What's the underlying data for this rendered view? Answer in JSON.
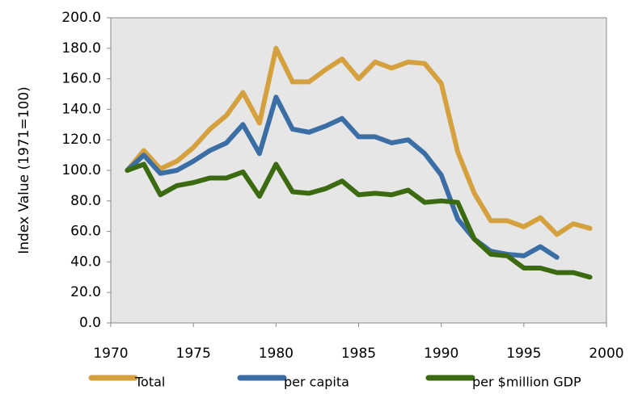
{
  "chart_data": {
    "type": "line",
    "y_label": "Index Value (1971=100)",
    "x": [
      1971,
      1972,
      1973,
      1974,
      1975,
      1976,
      1977,
      1978,
      1979,
      1980,
      1981,
      1982,
      1983,
      1984,
      1985,
      1986,
      1987,
      1988,
      1989,
      1990,
      1991,
      1992,
      1993,
      1994,
      1995,
      1996,
      1997,
      1998,
      1999
    ],
    "series": [
      {
        "name": "Total",
        "color": "#d4a13e",
        "values": [
          100,
          113,
          101,
          106,
          115,
          127,
          136,
          151,
          131,
          180,
          158,
          158,
          166,
          173,
          160,
          171,
          167,
          171,
          170,
          157,
          112,
          85,
          67,
          67,
          63,
          69,
          58,
          65,
          62
        ]
      },
      {
        "name": "per capita",
        "color": "#3a6ea5",
        "values": [
          100,
          110,
          98,
          100,
          106,
          113,
          118,
          130,
          111,
          148,
          127,
          125,
          129,
          134,
          122,
          122,
          118,
          120,
          111,
          97,
          68,
          55,
          47,
          45,
          44,
          50,
          43,
          null,
          null
        ]
      },
      {
        "name": "per $million GDP",
        "color": "#3b6a10",
        "values": [
          100,
          104,
          84,
          90,
          92,
          95,
          95,
          99,
          83,
          104,
          86,
          85,
          88,
          93,
          84,
          85,
          84,
          87,
          79,
          80,
          79,
          55,
          45,
          44,
          36,
          36,
          33,
          33,
          30
        ]
      }
    ],
    "xlim": [
      1970,
      2000
    ],
    "xticks": [
      1970,
      1975,
      1980,
      1985,
      1990,
      1995,
      2000
    ],
    "ylim": [
      0,
      200
    ],
    "yticks": [
      {
        "value": 0,
        "label": "0.0"
      },
      {
        "value": 20,
        "label": "20.0"
      },
      {
        "value": 40,
        "label": "40.0"
      },
      {
        "value": 60,
        "label": "60.0"
      },
      {
        "value": 80,
        "label": "80.0"
      },
      {
        "value": 100,
        "label": "100.0"
      },
      {
        "value": 120,
        "label": "120.0"
      },
      {
        "value": 140,
        "label": "140.0"
      },
      {
        "value": 160,
        "label": "160.0"
      },
      {
        "value": 180,
        "label": "180.0"
      },
      {
        "value": 200,
        "label": "200.0"
      }
    ]
  }
}
